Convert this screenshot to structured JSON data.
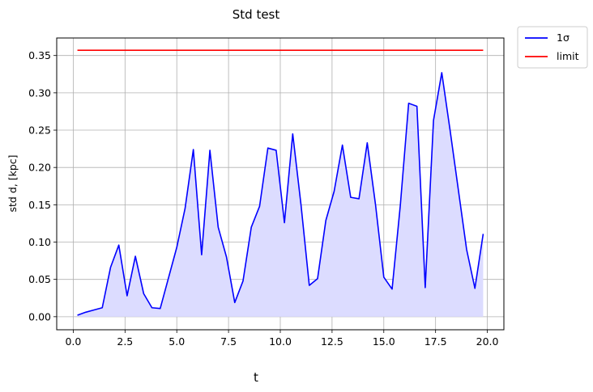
{
  "chart_data": {
    "type": "line",
    "title": "Std test",
    "xlabel": "t",
    "ylabel": "std d, [kpc]",
    "xlim": [
      -0.8,
      20.8
    ],
    "ylim": [
      -0.0175,
      0.3735
    ],
    "xticks": [
      0.0,
      2.5,
      5.0,
      7.5,
      10.0,
      12.5,
      15.0,
      17.5,
      20.0
    ],
    "xtick_labels": [
      "0.0",
      "2.5",
      "5.0",
      "7.5",
      "10.0",
      "12.5",
      "15.0",
      "17.5",
      "20.0"
    ],
    "yticks": [
      0.0,
      0.05,
      0.1,
      0.15,
      0.2,
      0.25,
      0.3,
      0.35
    ],
    "ytick_labels": [
      "0.00",
      "0.05",
      "0.10",
      "0.15",
      "0.20",
      "0.25",
      "0.30",
      "0.35"
    ],
    "grid": true,
    "legend_position": "outside-top-right",
    "series": [
      {
        "name": "1σ",
        "color": "#0000ff",
        "fill": true,
        "fill_color": "#dcdcff",
        "x": [
          0.2,
          0.6,
          1.0,
          1.4,
          1.8,
          2.2,
          2.6,
          3.0,
          3.4,
          3.8,
          4.2,
          4.6,
          5.0,
          5.4,
          5.8,
          6.2,
          6.6,
          7.0,
          7.4,
          7.8,
          8.2,
          8.6,
          9.0,
          9.4,
          9.8,
          10.2,
          10.6,
          11.0,
          11.4,
          11.8,
          12.2,
          12.6,
          13.0,
          13.4,
          13.8,
          14.2,
          14.6,
          15.0,
          15.4,
          15.8,
          16.2,
          16.6,
          17.0,
          17.4,
          17.8,
          18.2,
          18.6,
          19.0,
          19.4,
          19.8
        ],
        "values": [
          0.002,
          0.006,
          0.009,
          0.012,
          0.066,
          0.096,
          0.028,
          0.081,
          0.031,
          0.012,
          0.011,
          0.052,
          0.093,
          0.145,
          0.224,
          0.083,
          0.223,
          0.12,
          0.08,
          0.019,
          0.048,
          0.12,
          0.148,
          0.226,
          0.223,
          0.126,
          0.245,
          0.15,
          0.042,
          0.051,
          0.129,
          0.168,
          0.23,
          0.16,
          0.158,
          0.233,
          0.15,
          0.053,
          0.037,
          0.15,
          0.286,
          0.282,
          0.039,
          0.263,
          0.327,
          0.25,
          0.17,
          0.09,
          0.038,
          0.111
        ]
      },
      {
        "name": "limit",
        "color": "#ff0000",
        "fill": false,
        "x": [
          0.2,
          19.8
        ],
        "values": [
          0.357,
          0.357
        ]
      }
    ]
  }
}
